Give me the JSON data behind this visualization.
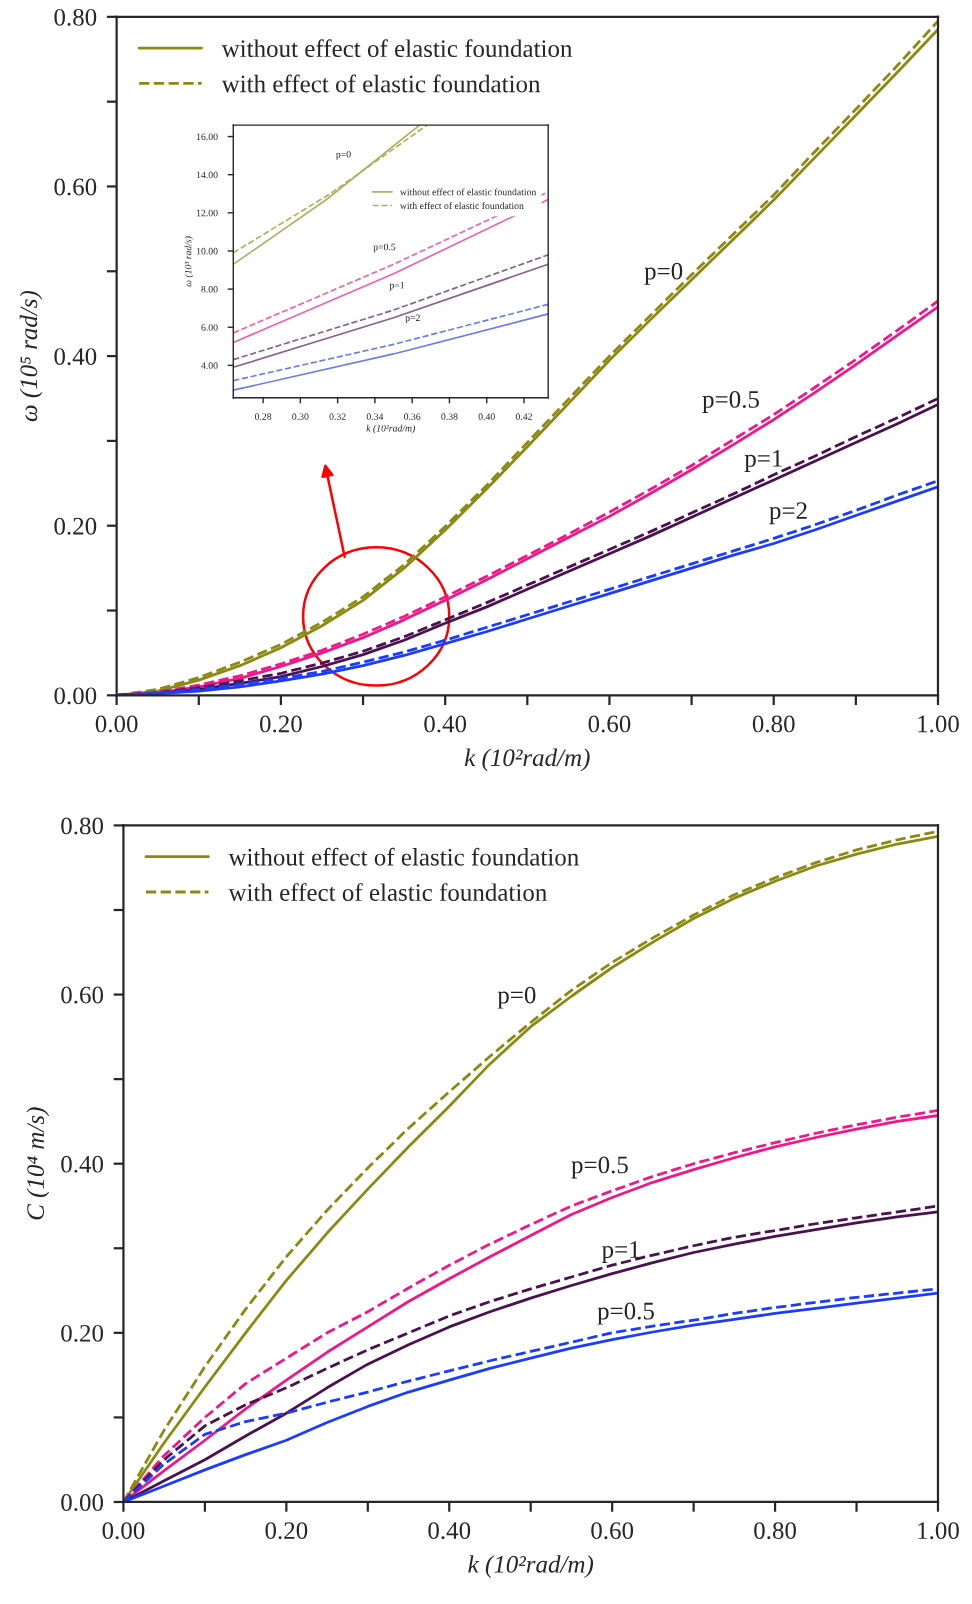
{
  "chart_data": [
    {
      "type": "line",
      "xlabel": "k (10²rad/m)",
      "ylabel": "ω (10⁵ rad/s)",
      "xlim": [
        0,
        1
      ],
      "ylim": [
        0,
        0.8
      ],
      "xticks": [
        {
          "value": 0,
          "label": "0.00"
        },
        {
          "value": 0.1,
          "label": null
        },
        {
          "value": 0.2,
          "label": "0.20"
        },
        {
          "value": 0.3,
          "label": null
        },
        {
          "value": 0.4,
          "label": "0.40"
        },
        {
          "value": 0.5,
          "label": null
        },
        {
          "value": 0.6,
          "label": "0.60"
        },
        {
          "value": 0.7,
          "label": null
        },
        {
          "value": 0.8,
          "label": "0.80"
        },
        {
          "value": 0.9,
          "label": null
        },
        {
          "value": 1,
          "label": "1.00"
        }
      ],
      "yticks": [
        {
          "value": 0,
          "label": "0.00"
        },
        {
          "value": 0.1,
          "label": null
        },
        {
          "value": 0.2,
          "label": "0.20"
        },
        {
          "value": 0.3,
          "label": null
        },
        {
          "value": 0.4,
          "label": "0.40"
        },
        {
          "value": 0.5,
          "label": null
        },
        {
          "value": 0.6,
          "label": "0.60"
        },
        {
          "value": 0.7,
          "label": null
        },
        {
          "value": 0.8,
          "label": "0.80"
        }
      ],
      "x": [
        0,
        0.05,
        0.1,
        0.15,
        0.2,
        0.25,
        0.3,
        0.35,
        0.4,
        0.45,
        0.5,
        0.55,
        0.6,
        0.65,
        0.7,
        0.75,
        0.8,
        0.85,
        0.9,
        0.95,
        1.0
      ],
      "legend": "top left",
      "grid": false,
      "series": [
        {
          "name": "without effect of elastic foundation",
          "color": "#8a8a10",
          "line_style": "solid",
          "values": [
            0,
            0.005,
            0.018,
            0.035,
            0.056,
            0.082,
            0.112,
            0.15,
            0.195,
            0.243,
            0.293,
            0.344,
            0.395,
            0.443,
            0.49,
            0.537,
            0.584,
            0.634,
            0.684,
            0.734,
            0.785
          ]
        },
        {
          "name": "with effect of elastic foundation",
          "color": "#8a8a10",
          "line_style": "dashed",
          "values": [
            0,
            0.007,
            0.021,
            0.039,
            0.06,
            0.086,
            0.116,
            0.154,
            0.199,
            0.247,
            0.298,
            0.349,
            0.4,
            0.448,
            0.496,
            0.543,
            0.59,
            0.641,
            0.691,
            0.742,
            0.795
          ]
        },
        {
          "color": "#f0168c",
          "line_style": "solid",
          "values": [
            0,
            0.003,
            0.01,
            0.02,
            0.034,
            0.05,
            0.068,
            0.089,
            0.112,
            0.136,
            0.161,
            0.186,
            0.211,
            0.238,
            0.266,
            0.295,
            0.325,
            0.357,
            0.39,
            0.424,
            0.458
          ]
        },
        {
          "color": "#f0168c",
          "line_style": "dashed",
          "values": [
            0,
            0.004,
            0.012,
            0.023,
            0.037,
            0.053,
            0.072,
            0.093,
            0.116,
            0.14,
            0.165,
            0.19,
            0.216,
            0.243,
            0.271,
            0.301,
            0.331,
            0.363,
            0.396,
            0.43,
            0.465
          ]
        },
        {
          "color": "#4b1050",
          "line_style": "solid",
          "values": [
            0,
            0.002,
            0.007,
            0.014,
            0.022,
            0.034,
            0.048,
            0.065,
            0.085,
            0.104,
            0.125,
            0.146,
            0.167,
            0.188,
            0.21,
            0.232,
            0.254,
            0.276,
            0.298,
            0.32,
            0.343
          ]
        },
        {
          "color": "#4b1050",
          "line_style": "dashed",
          "values": [
            0,
            0.003,
            0.009,
            0.017,
            0.026,
            0.038,
            0.052,
            0.069,
            0.089,
            0.109,
            0.13,
            0.151,
            0.172,
            0.193,
            0.215,
            0.237,
            0.26,
            0.282,
            0.305,
            0.327,
            0.35
          ]
        },
        {
          "color": "#1a3cff",
          "line_style": "solid",
          "values": [
            0,
            0.002,
            0.005,
            0.01,
            0.017,
            0.025,
            0.035,
            0.047,
            0.061,
            0.075,
            0.09,
            0.105,
            0.12,
            0.135,
            0.15,
            0.165,
            0.179,
            0.195,
            0.212,
            0.229,
            0.246
          ]
        },
        {
          "color": "#1a3cff",
          "line_style": "dashed",
          "values": [
            0,
            0.003,
            0.007,
            0.013,
            0.02,
            0.028,
            0.039,
            0.051,
            0.065,
            0.08,
            0.095,
            0.11,
            0.125,
            0.14,
            0.155,
            0.17,
            0.185,
            0.201,
            0.218,
            0.236,
            0.253
          ]
        }
      ],
      "annotations": [
        "p=0",
        "p=0.5",
        "p=1",
        "p=2"
      ]
    },
    {
      "type": "line",
      "xlabel": "k (10²rad/m)",
      "ylabel": "ω (10³ rad/s)",
      "xlim": [
        0.264,
        0.433
      ],
      "ylim": [
        2.3,
        16.6
      ],
      "xticks": [
        {
          "value": 0.28,
          "label": "0.28"
        },
        {
          "value": 0.3,
          "label": "0.30"
        },
        {
          "value": 0.32,
          "label": "0.32"
        },
        {
          "value": 0.34,
          "label": "0.34"
        },
        {
          "value": 0.36,
          "label": "0.36"
        },
        {
          "value": 0.38,
          "label": "0.38"
        },
        {
          "value": 0.4,
          "label": "0.40"
        },
        {
          "value": 0.42,
          "label": "0.42"
        }
      ],
      "yticks": [
        {
          "value": 4,
          "label": "4.00"
        },
        {
          "value": 6,
          "label": "6.00"
        },
        {
          "value": 8,
          "label": "8.00"
        },
        {
          "value": 10,
          "label": "10.00"
        },
        {
          "value": 12,
          "label": "12.00"
        },
        {
          "value": 14,
          "label": "14.00"
        },
        {
          "value": 16,
          "label": "16.00"
        }
      ],
      "legend": "top right",
      "grid": false,
      "series": [
        {
          "name": "without effect of elastic foundation",
          "color": "#b0b060",
          "line_style": "solid",
          "x": [
            0.264,
            0.314,
            0.364
          ],
          "values": [
            9.3,
            12.7,
            16.6
          ]
        },
        {
          "name": "with effect of elastic foundation",
          "color": "#b0b060",
          "line_style": "dashed",
          "x": [
            0.264,
            0.316,
            0.368
          ],
          "values": [
            9.9,
            13.0,
            16.6
          ]
        },
        {
          "color": "#f060b0",
          "line_style": "solid",
          "x": [
            0.264,
            0.35,
            0.433
          ],
          "values": [
            5.2,
            8.8,
            12.7
          ]
        },
        {
          "color": "#f060b0",
          "line_style": "dashed",
          "x": [
            0.264,
            0.35,
            0.433
          ],
          "values": [
            5.7,
            9.3,
            13.1
          ]
        },
        {
          "color": "#8a6090",
          "line_style": "solid",
          "x": [
            0.264,
            0.35,
            0.433
          ],
          "values": [
            3.9,
            6.5,
            9.3
          ]
        },
        {
          "color": "#8a6090",
          "line_style": "dashed",
          "x": [
            0.264,
            0.35,
            0.433
          ],
          "values": [
            4.3,
            6.9,
            9.8
          ]
        },
        {
          "color": "#6a7cf0",
          "line_style": "solid",
          "x": [
            0.264,
            0.35,
            0.433
          ],
          "values": [
            2.7,
            4.6,
            6.7
          ]
        },
        {
          "color": "#6a7cf0",
          "line_style": "dashed",
          "x": [
            0.264,
            0.35,
            0.433
          ],
          "values": [
            3.2,
            5.1,
            7.2
          ]
        }
      ],
      "annotations": [
        "p=0",
        "p=0.5",
        "p=1",
        "p=2"
      ]
    },
    {
      "type": "line",
      "xlabel": "k (10²rad/m)",
      "ylabel": "C (10⁴ m/s)",
      "xlim": [
        0,
        1
      ],
      "ylim": [
        0,
        0.8
      ],
      "xticks": [
        {
          "value": 0,
          "label": "0.00"
        },
        {
          "value": 0.1,
          "label": null
        },
        {
          "value": 0.2,
          "label": "0.20"
        },
        {
          "value": 0.3,
          "label": null
        },
        {
          "value": 0.4,
          "label": "0.40"
        },
        {
          "value": 0.5,
          "label": null
        },
        {
          "value": 0.6,
          "label": "0.60"
        },
        {
          "value": 0.7,
          "label": null
        },
        {
          "value": 0.8,
          "label": "0.80"
        },
        {
          "value": 0.9,
          "label": null
        },
        {
          "value": 1,
          "label": "1.00"
        }
      ],
      "yticks": [
        {
          "value": 0,
          "label": "0.00"
        },
        {
          "value": 0.1,
          "label": null
        },
        {
          "value": 0.2,
          "label": "0.20"
        },
        {
          "value": 0.3,
          "label": null
        },
        {
          "value": 0.4,
          "label": "0.40"
        },
        {
          "value": 0.5,
          "label": null
        },
        {
          "value": 0.6,
          "label": "0.60"
        },
        {
          "value": 0.7,
          "label": null
        },
        {
          "value": 0.8,
          "label": "0.80"
        }
      ],
      "x": [
        0,
        0.05,
        0.1,
        0.15,
        0.2,
        0.25,
        0.3,
        0.35,
        0.4,
        0.45,
        0.5,
        0.55,
        0.6,
        0.65,
        0.7,
        0.75,
        0.8,
        0.85,
        0.9,
        0.95,
        1.0
      ],
      "legend": "top left",
      "grid": false,
      "series": [
        {
          "name": "without effect of elastic foundation",
          "color": "#8a8a10",
          "line_style": "solid",
          "values": [
            0,
            0.07,
            0.136,
            0.2,
            0.262,
            0.318,
            0.37,
            0.42,
            0.468,
            0.518,
            0.562,
            0.598,
            0.632,
            0.662,
            0.69,
            0.714,
            0.734,
            0.752,
            0.766,
            0.778,
            0.787
          ]
        },
        {
          "name": "with effect of elastic foundation",
          "color": "#8a8a10",
          "line_style": "dashed",
          "values": [
            0,
            0.085,
            0.16,
            0.228,
            0.29,
            0.345,
            0.395,
            0.442,
            0.485,
            0.527,
            0.567,
            0.605,
            0.638,
            0.667,
            0.694,
            0.718,
            0.738,
            0.756,
            0.771,
            0.783,
            0.793
          ]
        },
        {
          "color": "#f0168c",
          "line_style": "solid",
          "values": [
            0,
            0.037,
            0.073,
            0.11,
            0.144,
            0.177,
            0.207,
            0.237,
            0.264,
            0.29,
            0.315,
            0.34,
            0.36,
            0.378,
            0.393,
            0.407,
            0.42,
            0.431,
            0.441,
            0.45,
            0.457
          ]
        },
        {
          "color": "#f0168c",
          "line_style": "dashed",
          "values": [
            0,
            0.055,
            0.1,
            0.14,
            0.17,
            0.2,
            0.225,
            0.253,
            0.28,
            0.305,
            0.328,
            0.35,
            0.368,
            0.385,
            0.4,
            0.413,
            0.425,
            0.436,
            0.446,
            0.455,
            0.463
          ]
        },
        {
          "color": "#4b1050",
          "line_style": "solid",
          "values": [
            0,
            0.025,
            0.05,
            0.078,
            0.105,
            0.135,
            0.163,
            0.186,
            0.207,
            0.225,
            0.241,
            0.256,
            0.27,
            0.283,
            0.295,
            0.305,
            0.314,
            0.322,
            0.33,
            0.337,
            0.343
          ]
        },
        {
          "color": "#4b1050",
          "line_style": "dashed",
          "values": [
            0,
            0.05,
            0.09,
            0.115,
            0.135,
            0.158,
            0.18,
            0.2,
            0.22,
            0.237,
            0.252,
            0.266,
            0.28,
            0.292,
            0.303,
            0.313,
            0.321,
            0.329,
            0.336,
            0.343,
            0.35
          ]
        },
        {
          "color": "#1a3cff",
          "line_style": "solid",
          "values": [
            0,
            0.019,
            0.038,
            0.056,
            0.073,
            0.094,
            0.113,
            0.13,
            0.144,
            0.158,
            0.17,
            0.182,
            0.192,
            0.201,
            0.209,
            0.216,
            0.223,
            0.229,
            0.235,
            0.241,
            0.247
          ]
        },
        {
          "color": "#1a3cff",
          "line_style": "dashed",
          "values": [
            0,
            0.045,
            0.08,
            0.095,
            0.105,
            0.118,
            0.13,
            0.143,
            0.155,
            0.167,
            0.178,
            0.189,
            0.2,
            0.208,
            0.215,
            0.223,
            0.23,
            0.236,
            0.242,
            0.247,
            0.252
          ]
        }
      ],
      "annotations": [
        "p=0",
        "p=0.5",
        "p=1",
        "p=0.5"
      ]
    }
  ]
}
